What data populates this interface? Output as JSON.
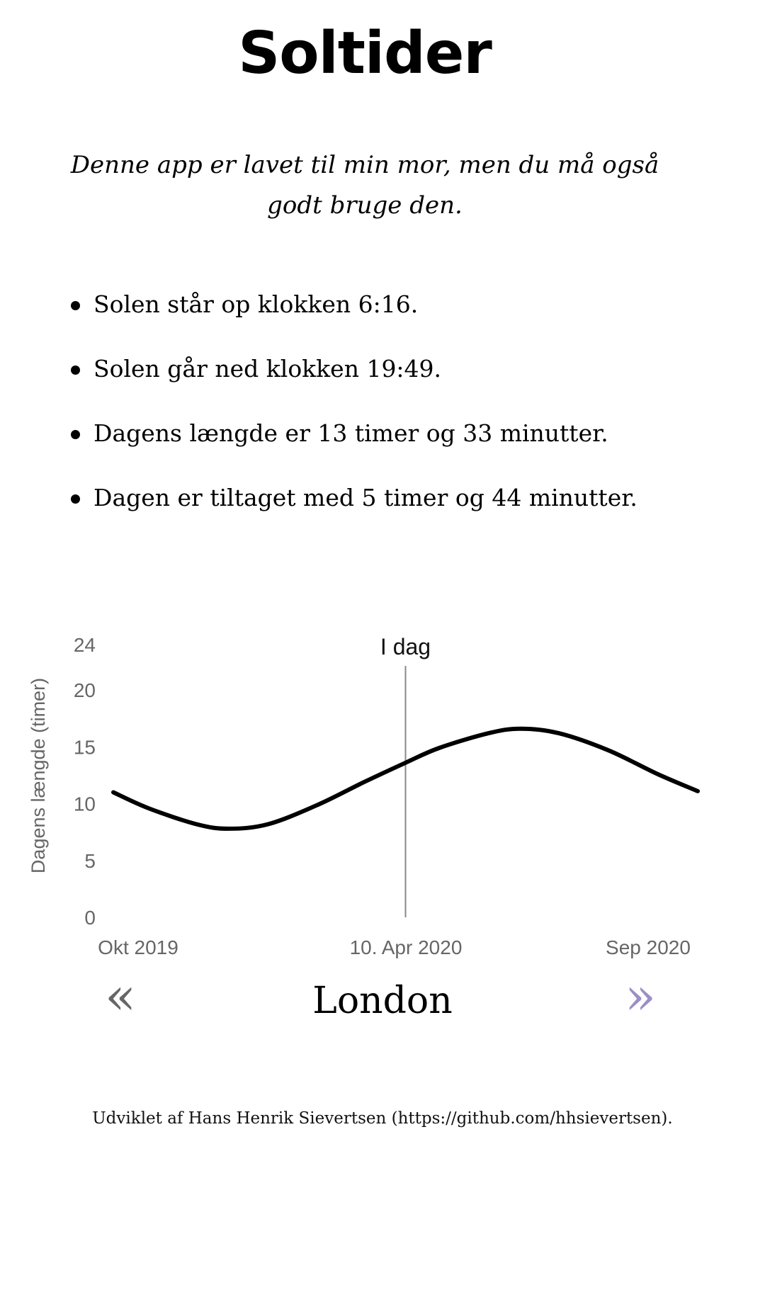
{
  "header": {
    "title": "Soltider",
    "subtitle": "Denne app er lavet til min mor, men du må også godt bruge den."
  },
  "facts": [
    "Solen står op klokken 6:16.",
    "Solen går ned klokken 19:49.",
    "Dagens længde er 13 timer og 33 minutter.",
    "Dagen er tiltaget med 5 timer og 44 minutter."
  ],
  "chart_data": {
    "type": "line",
    "title": "",
    "xlabel": "",
    "ylabel": "Dagens længde (timer)",
    "ylim": [
      0,
      24
    ],
    "yticks": [
      "0",
      "5",
      "10",
      "15",
      "20",
      "24"
    ],
    "xticks": [
      "Okt 2019",
      "10. Apr 2020",
      "Sep 2020"
    ],
    "annotation": "I dag",
    "grid": false,
    "line_color": "#000000",
    "marker_color": "#888888",
    "x": [
      "2019-10-10",
      "2019-11-01",
      "2019-12-01",
      "2019-12-21",
      "2020-01-15",
      "2020-02-15",
      "2020-03-15",
      "2020-04-10",
      "2020-05-01",
      "2020-06-01",
      "2020-06-21",
      "2020-07-15",
      "2020-08-15",
      "2020-09-15",
      "2020-10-10"
    ],
    "values": [
      11.0,
      9.6,
      8.2,
      7.8,
      8.2,
      9.9,
      11.9,
      13.6,
      14.9,
      16.2,
      16.6,
      16.2,
      14.7,
      12.6,
      11.1
    ],
    "today": "2020-04-10",
    "today_value": 13.55
  },
  "nav": {
    "prev_label": "«",
    "next_label": "»",
    "city": "London",
    "prev_icon": "double-chevron-left-icon",
    "next_icon": "double-chevron-right-icon",
    "prev_color": "#666666",
    "next_color": "#9b8fc4"
  },
  "footer": {
    "text": "Udviklet af Hans Henrik Sievertsen (https://github.com/hhsievertsen)."
  }
}
